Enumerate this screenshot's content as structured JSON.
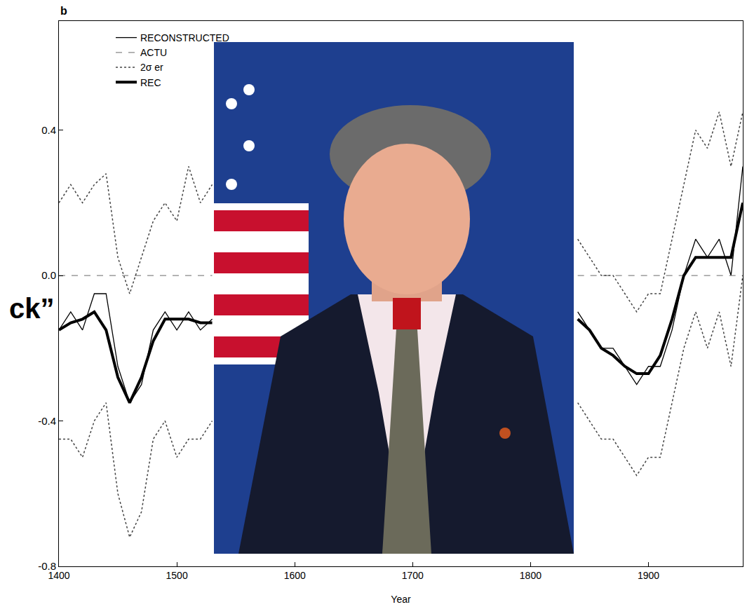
{
  "chart_data": {
    "type": "line",
    "annotations": [
      "b",
      "ck”"
    ],
    "x_label": "Year",
    "x": [
      1400,
      1410,
      1420,
      1430,
      1440,
      1450,
      1460,
      1470,
      1480,
      1490,
      1500,
      1510,
      1520,
      1530,
      1540,
      1550,
      1560,
      1570,
      1580,
      1590,
      1600,
      1610,
      1620,
      1630,
      1640,
      1650,
      1660,
      1670,
      1680,
      1690,
      1700,
      1710,
      1720,
      1730,
      1740,
      1750,
      1760,
      1770,
      1780,
      1790,
      1800,
      1810,
      1820,
      1830,
      1840,
      1850,
      1860,
      1870,
      1880,
      1890,
      1900,
      1910,
      1920,
      1930,
      1940,
      1950,
      1960,
      1970,
      1980
    ],
    "xlim": [
      1400,
      1980
    ],
    "xticks": [
      1400,
      1500,
      1600,
      1700,
      1800,
      1900
    ],
    "ylim": [
      -0.8,
      0.7
    ],
    "yticks": [
      -0.8,
      -0.4,
      {
        "value": 0,
        "label": "0.0"
      },
      0.4
    ],
    "grid": false,
    "legend": "upper left",
    "series": [
      {
        "name": "RECONSTRUCTED",
        "color": "#000000",
        "line_style": "solid",
        "values": [
          -0.15,
          -0.1,
          -0.15,
          -0.05,
          -0.05,
          -0.25,
          -0.35,
          -0.3,
          -0.15,
          -0.1,
          -0.15,
          -0.1,
          -0.15,
          -0.12,
          null,
          null,
          null,
          null,
          null,
          null,
          null,
          null,
          null,
          null,
          null,
          null,
          null,
          null,
          null,
          null,
          null,
          null,
          null,
          null,
          null,
          null,
          null,
          null,
          null,
          null,
          null,
          null,
          null,
          null,
          -0.1,
          -0.15,
          -0.2,
          -0.2,
          -0.25,
          -0.3,
          -0.25,
          -0.25,
          -0.15,
          0.0,
          0.1,
          0.05,
          0.1,
          0.0,
          0.3
        ]
      },
      {
        "name": "ACTU",
        "color": "#888888",
        "line_style": "dash",
        "values": [
          0,
          0,
          0,
          0,
          0,
          0,
          0,
          0,
          0,
          0,
          0,
          0,
          0,
          0,
          null,
          null,
          null,
          null,
          null,
          null,
          null,
          null,
          null,
          null,
          null,
          null,
          null,
          null,
          null,
          null,
          null,
          null,
          null,
          null,
          null,
          null,
          null,
          null,
          null,
          null,
          null,
          null,
          null,
          null,
          0,
          0,
          0,
          0,
          0,
          0,
          0,
          0,
          0,
          0,
          0,
          0,
          0,
          0,
          0
        ]
      },
      {
        "name": "2σ er",
        "color": "#444444",
        "line_style": "dot",
        "values": [
          0.2,
          0.25,
          0.2,
          0.25,
          0.28,
          0.05,
          -0.05,
          0.05,
          0.15,
          0.2,
          0.15,
          0.3,
          0.2,
          0.25,
          null,
          null,
          null,
          null,
          null,
          null,
          null,
          null,
          null,
          null,
          null,
          null,
          null,
          null,
          null,
          null,
          null,
          null,
          null,
          null,
          null,
          null,
          null,
          null,
          null,
          null,
          null,
          null,
          null,
          null,
          0.1,
          0.05,
          0.0,
          0.0,
          -0.05,
          -0.1,
          -0.05,
          -0.05,
          0.1,
          0.25,
          0.4,
          0.35,
          0.45,
          0.3,
          0.45
        ]
      },
      {
        "name": "2σ er",
        "color": "#444444",
        "line_style": "dot",
        "values": [
          -0.45,
          -0.45,
          -0.5,
          -0.4,
          -0.35,
          -0.6,
          -0.72,
          -0.65,
          -0.45,
          -0.4,
          -0.5,
          -0.45,
          -0.45,
          -0.4,
          null,
          null,
          null,
          null,
          null,
          null,
          null,
          null,
          null,
          null,
          null,
          null,
          null,
          null,
          null,
          null,
          null,
          null,
          null,
          null,
          null,
          null,
          null,
          null,
          null,
          null,
          null,
          null,
          null,
          null,
          -0.35,
          -0.4,
          -0.45,
          -0.45,
          -0.5,
          -0.55,
          -0.5,
          -0.5,
          -0.35,
          -0.2,
          -0.1,
          -0.2,
          -0.1,
          -0.25,
          0.0
        ]
      },
      {
        "name": "REC",
        "color": "#000000",
        "line_style": "thick",
        "values": [
          -0.15,
          -0.13,
          -0.12,
          -0.1,
          -0.15,
          -0.28,
          -0.35,
          -0.28,
          -0.18,
          -0.12,
          -0.12,
          -0.12,
          -0.13,
          -0.13,
          null,
          null,
          null,
          null,
          null,
          null,
          null,
          null,
          null,
          null,
          null,
          null,
          null,
          null,
          null,
          null,
          null,
          null,
          null,
          null,
          null,
          null,
          null,
          null,
          null,
          null,
          null,
          null,
          null,
          null,
          -0.12,
          -0.15,
          -0.2,
          -0.22,
          -0.25,
          -0.27,
          -0.27,
          -0.22,
          -0.12,
          0.0,
          0.05,
          0.05,
          0.05,
          0.05,
          0.2
        ]
      }
    ]
  }
}
